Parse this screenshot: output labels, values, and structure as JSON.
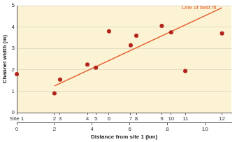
{
  "chart_data": {
    "type": "scatter",
    "y_label": "Channel width (m)",
    "x_label": "Distance from site 1 (km)",
    "xlim": [
      0,
      11.4
    ],
    "xticks": [
      0,
      2,
      4,
      6,
      8,
      10
    ],
    "x2lim": [
      0,
      11.4
    ],
    "x2ticks": [
      {
        "value": 0,
        "label": "Site 1"
      },
      {
        "value": 2.0,
        "label": "2"
      },
      {
        "value": 2.3,
        "label": "3"
      },
      {
        "value": 3.75,
        "label": "4"
      },
      {
        "value": 4.2,
        "label": "5"
      },
      {
        "value": 4.9,
        "label": "6"
      },
      {
        "value": 6.05,
        "label": "7"
      },
      {
        "value": 6.35,
        "label": "8"
      },
      {
        "value": 7.7,
        "label": "9"
      },
      {
        "value": 8.2,
        "label": "10"
      },
      {
        "value": 8.95,
        "label": "11"
      },
      {
        "value": 10.9,
        "label": "12"
      }
    ],
    "ylim": [
      0,
      5
    ],
    "yticks": [
      0,
      1,
      2,
      3,
      4,
      5
    ],
    "grid": true,
    "series": [
      {
        "type": "scatter",
        "color": "#b3231b",
        "marker": "circle",
        "x": [
          0,
          2.0,
          2.3,
          3.75,
          4.2,
          4.9,
          6.05,
          6.35,
          7.7,
          8.2,
          8.95,
          10.9
        ],
        "values": [
          1.8,
          0.9,
          1.55,
          2.25,
          2.1,
          3.8,
          3.15,
          3.6,
          4.05,
          3.75,
          1.95,
          3.7
        ]
      },
      {
        "name": "Line of best fit",
        "type": "line",
        "color": "#e35a2b",
        "line_style": "solid",
        "x": [
          2.0,
          10.9
        ],
        "values": [
          1.25,
          4.9
        ]
      }
    ]
  }
}
